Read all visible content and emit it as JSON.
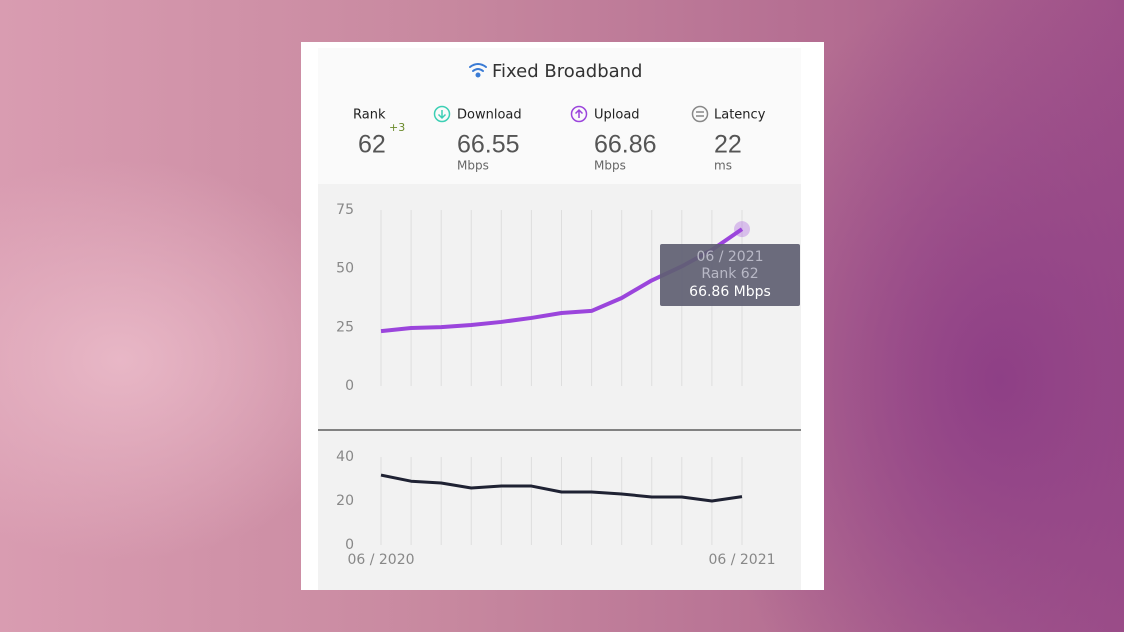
{
  "title": "Fixed Broadband",
  "stats": [
    {
      "label": "Rank",
      "value": "62",
      "change": "+3"
    },
    {
      "label": "Download",
      "value": "66.55",
      "unit": "Mbps"
    },
    {
      "label": "Upload",
      "value": "66.86",
      "unit": "Mbps"
    },
    {
      "label": "Latency",
      "value": "22",
      "unit": "ms"
    }
  ],
  "chart_data": [
    {
      "type": "line",
      "x": [
        "06 / 2020",
        null,
        null,
        null,
        null,
        null,
        null,
        null,
        null,
        null,
        null,
        null,
        "06 / 2021"
      ],
      "values": [
        23.4,
        24.7,
        25.1,
        26,
        27.3,
        29,
        31.1,
        32,
        37.5,
        45,
        51,
        58,
        66.86
      ],
      "color": "#9b45dc",
      "ylim": [
        0,
        75
      ],
      "yticks": [
        0,
        25,
        50,
        75
      ],
      "grid": true,
      "tooltip": {
        "date": "06 / 2021",
        "rank": "Rank 62",
        "value": "66.86 Mbps"
      }
    },
    {
      "type": "line",
      "x": [
        "06 / 2020",
        null,
        null,
        null,
        null,
        null,
        null,
        null,
        null,
        null,
        null,
        null,
        "06 / 2021"
      ],
      "values": [
        31.8,
        29,
        28.2,
        25.9,
        26.8,
        26.8,
        24.1,
        24.1,
        23.2,
        21.8,
        21.8,
        20,
        22
      ],
      "color": "#1f2233",
      "ylim": [
        0,
        40
      ],
      "yticks": [
        0,
        20,
        40
      ],
      "grid": true
    }
  ]
}
